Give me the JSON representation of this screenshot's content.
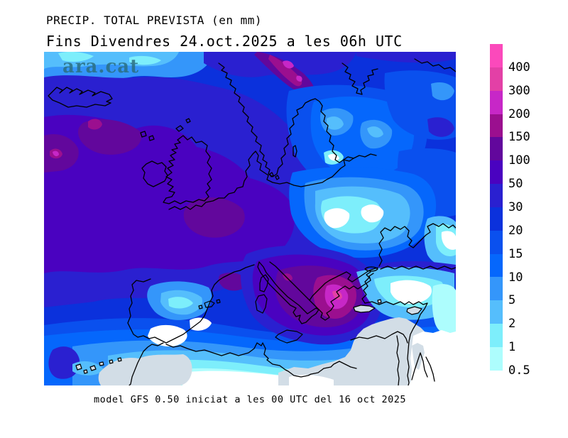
{
  "header": {
    "title": "PRECIP. TOTAL PREVISTA (en mm)",
    "subtitle": "Fins Divendres 24.oct.2025 a les 06h UTC"
  },
  "footer": {
    "caption": "model GFS 0.50 iniciat a les 00 UTC del 16 oct 2025"
  },
  "map": {
    "watermark": "ara.cat",
    "region": "Europe / North Africa",
    "variable": "total forecast precipitation (mm)"
  },
  "legend": {
    "units": "mm",
    "segments": [
      {
        "value": "400",
        "color": "#fb49bb"
      },
      {
        "value": "300",
        "color": "#e340a6"
      },
      {
        "value": "200",
        "color": "#c727c7"
      },
      {
        "value": "150",
        "color": "#9b0f8f"
      },
      {
        "value": "100",
        "color": "#62079c"
      },
      {
        "value": "50",
        "color": "#4a02c0"
      },
      {
        "value": "30",
        "color": "#2a20d0"
      },
      {
        "value": "20",
        "color": "#0b31dc"
      },
      {
        "value": "15",
        "color": "#0a50ee"
      },
      {
        "value": "10",
        "color": "#0567fc"
      },
      {
        "value": "5",
        "color": "#3496fa"
      },
      {
        "value": "2",
        "color": "#55befc"
      },
      {
        "value": "1",
        "color": "#7deefb"
      },
      {
        "value": "0.5",
        "color": "#adfdfd"
      }
    ]
  },
  "palette": {
    "p400": "#fb49bb",
    "p300": "#e340a6",
    "p200": "#c727c7",
    "p150": "#9b0f8f",
    "p100": "#62079c",
    "p50": "#4a02c0",
    "p30": "#2a20d0",
    "p20": "#0b31dc",
    "p15": "#0a50ee",
    "p10": "#0567fc",
    "p5": "#3496fa",
    "p2": "#55befc",
    "p1": "#7deefb",
    "p05": "#adfdfd",
    "land": "#d2dde6",
    "none": "#ffffff",
    "coast": "#000000",
    "wm": "#2b6f80"
  }
}
